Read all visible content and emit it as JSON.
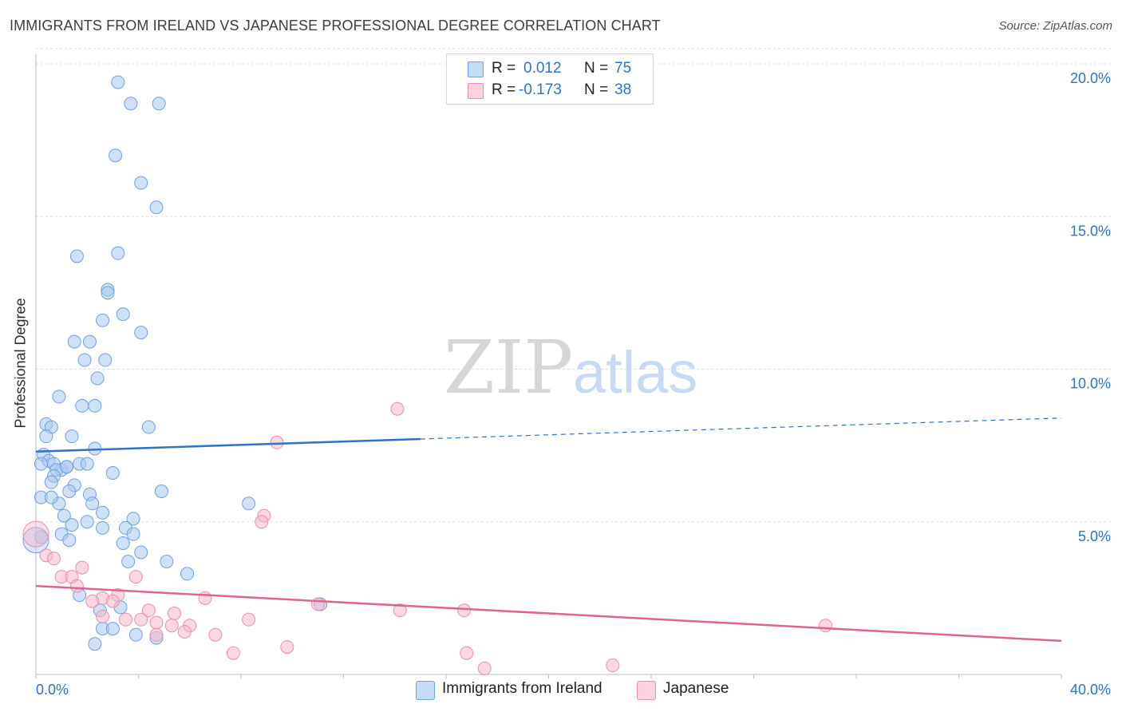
{
  "title": "IMMIGRANTS FROM IRELAND VS JAPANESE PROFESSIONAL DEGREE CORRELATION CHART",
  "source": "Source: ZipAtlas.com",
  "watermark": {
    "zip": "ZIP",
    "atlas": "atlas"
  },
  "colors": {
    "blue_fill": "#a9c8f0",
    "blue_stroke": "#6fa0e0",
    "blue_line": "#2e72c9",
    "pink_fill": "#f6b8cb",
    "pink_stroke": "#ea8fae",
    "pink_line": "#e0648f",
    "value_text": "#2e72c9",
    "grid": "#dddddd"
  },
  "legend": {
    "rows": [
      {
        "r_label": "R =",
        "r_value": "0.012",
        "n_label": "N =",
        "n_value": "75",
        "color": "#a9c8f0"
      },
      {
        "r_label": "R =",
        "r_value": "-0.173",
        "n_label": "N =",
        "n_value": "38",
        "color": "#f6b8cb"
      }
    ]
  },
  "bottom_legend": [
    {
      "label": "Immigrants from Ireland",
      "color": "#a9c8f0"
    },
    {
      "label": "Japanese",
      "color": "#f6b8cb"
    }
  ],
  "chart_data": {
    "type": "scatter",
    "title": "IMMIGRANTS FROM IRELAND VS JAPANESE PROFESSIONAL DEGREE CORRELATION CHART",
    "xlabel": "",
    "ylabel": "Professional Degree",
    "xlim": [
      0,
      40
    ],
    "ylim": [
      0,
      20
    ],
    "x_ticks_labeled": [
      0,
      40
    ],
    "x_tick_labels": [
      "0.0%",
      "40.0%"
    ],
    "y_ticks": [
      5,
      10,
      15,
      20
    ],
    "y_tick_labels": [
      "5.0%",
      "10.0%",
      "15.0%",
      "20.0%"
    ],
    "grid": "horizontal dashed",
    "legend_position": "top-center",
    "series": [
      {
        "name": "Immigrants from Ireland",
        "color": "#a9c8f0",
        "r": 0.012,
        "n": 75,
        "trend": {
          "x": [
            0,
            40
          ],
          "y": [
            7.3,
            8.4
          ],
          "solid_until_x": 15
        },
        "points": [
          [
            3.2,
            19.4
          ],
          [
            3.7,
            18.7
          ],
          [
            4.8,
            18.7
          ],
          [
            3.1,
            17.0
          ],
          [
            4.1,
            16.1
          ],
          [
            4.7,
            15.3
          ],
          [
            1.6,
            13.7
          ],
          [
            3.2,
            13.8
          ],
          [
            2.8,
            12.6
          ],
          [
            2.8,
            12.5
          ],
          [
            3.4,
            11.8
          ],
          [
            2.6,
            11.6
          ],
          [
            4.1,
            11.2
          ],
          [
            1.5,
            10.9
          ],
          [
            2.1,
            10.9
          ],
          [
            1.9,
            10.3
          ],
          [
            2.7,
            10.3
          ],
          [
            2.4,
            9.7
          ],
          [
            0.9,
            9.1
          ],
          [
            1.8,
            8.8
          ],
          [
            2.3,
            8.8
          ],
          [
            4.4,
            8.1
          ],
          [
            0.4,
            8.2
          ],
          [
            0.6,
            8.1
          ],
          [
            0.4,
            7.8
          ],
          [
            1.4,
            7.8
          ],
          [
            2.3,
            7.4
          ],
          [
            0.3,
            7.2
          ],
          [
            0.5,
            7.0
          ],
          [
            0.7,
            6.9
          ],
          [
            0.2,
            6.9
          ],
          [
            1.0,
            6.7
          ],
          [
            1.2,
            6.8
          ],
          [
            0.8,
            6.7
          ],
          [
            1.7,
            6.9
          ],
          [
            2.0,
            6.9
          ],
          [
            1.2,
            6.8
          ],
          [
            0.7,
            6.5
          ],
          [
            3.0,
            6.6
          ],
          [
            0.6,
            6.3
          ],
          [
            1.5,
            6.2
          ],
          [
            1.3,
            6.0
          ],
          [
            2.1,
            5.9
          ],
          [
            4.9,
            6.0
          ],
          [
            0.2,
            5.8
          ],
          [
            0.9,
            5.6
          ],
          [
            2.2,
            5.6
          ],
          [
            8.3,
            5.6
          ],
          [
            1.1,
            5.2
          ],
          [
            2.6,
            5.3
          ],
          [
            3.8,
            5.1
          ],
          [
            2.0,
            5.0
          ],
          [
            1.4,
            4.9
          ],
          [
            2.6,
            4.8
          ],
          [
            3.5,
            4.8
          ],
          [
            1.0,
            4.6
          ],
          [
            3.8,
            4.6
          ],
          [
            0.2,
            4.5
          ],
          [
            1.3,
            4.4
          ],
          [
            3.4,
            4.3
          ],
          [
            4.1,
            4.0
          ],
          [
            3.6,
            3.7
          ],
          [
            5.1,
            3.7
          ],
          [
            5.9,
            3.3
          ],
          [
            1.7,
            2.6
          ],
          [
            2.5,
            2.1
          ],
          [
            3.3,
            2.2
          ],
          [
            11.1,
            2.3
          ],
          [
            2.6,
            1.5
          ],
          [
            3.0,
            1.5
          ],
          [
            2.3,
            1.0
          ],
          [
            3.9,
            1.3
          ],
          [
            4.7,
            1.2
          ],
          [
            0.0,
            4.4
          ],
          [
            0.6,
            5.8
          ]
        ]
      },
      {
        "name": "Japanese",
        "color": "#f6b8cb",
        "r": -0.173,
        "n": 38,
        "trend": {
          "x": [
            0,
            40
          ],
          "y": [
            2.9,
            1.1
          ]
        },
        "points": [
          [
            0.0,
            4.6
          ],
          [
            0.4,
            3.9
          ],
          [
            0.7,
            3.8
          ],
          [
            14.1,
            8.7
          ],
          [
            9.4,
            7.6
          ],
          [
            8.9,
            5.2
          ],
          [
            8.8,
            5.0
          ],
          [
            1.8,
            3.5
          ],
          [
            1.0,
            3.2
          ],
          [
            1.4,
            3.2
          ],
          [
            3.9,
            3.2
          ],
          [
            1.6,
            2.9
          ],
          [
            3.2,
            2.6
          ],
          [
            6.6,
            2.5
          ],
          [
            2.6,
            2.5
          ],
          [
            2.2,
            2.4
          ],
          [
            3.0,
            2.4
          ],
          [
            11.0,
            2.3
          ],
          [
            4.4,
            2.1
          ],
          [
            14.2,
            2.1
          ],
          [
            16.7,
            2.1
          ],
          [
            5.4,
            2.0
          ],
          [
            2.6,
            1.9
          ],
          [
            3.5,
            1.8
          ],
          [
            4.1,
            1.8
          ],
          [
            4.7,
            1.7
          ],
          [
            8.3,
            1.8
          ],
          [
            5.3,
            1.6
          ],
          [
            6.0,
            1.6
          ],
          [
            30.8,
            1.6
          ],
          [
            5.8,
            1.4
          ],
          [
            4.7,
            1.3
          ],
          [
            7.0,
            1.3
          ],
          [
            9.8,
            0.9
          ],
          [
            7.7,
            0.7
          ],
          [
            16.8,
            0.7
          ],
          [
            17.5,
            0.2
          ],
          [
            22.5,
            0.3
          ]
        ]
      }
    ]
  }
}
